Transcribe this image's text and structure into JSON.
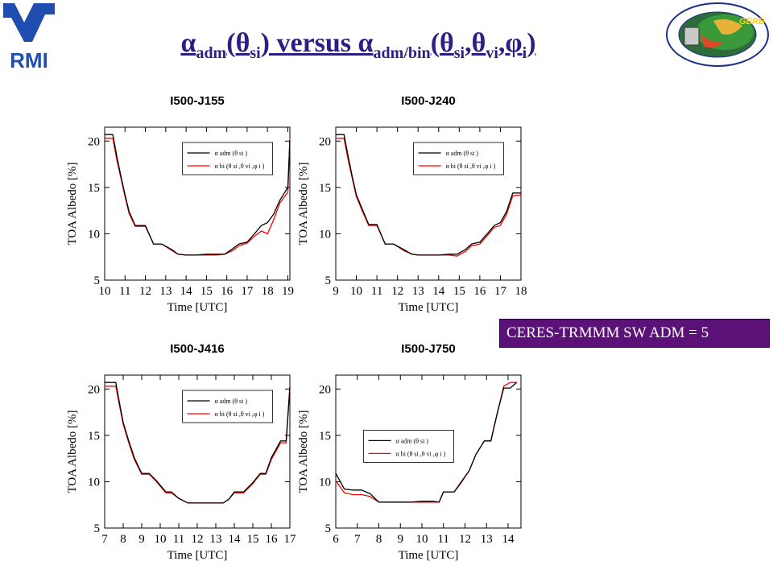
{
  "title": {
    "alpha": "α",
    "adm": "adm",
    "theta": "θ",
    "si": "si",
    "versus": ") versus ",
    "adm_bin": "adm/bin",
    "vi": "vi",
    "phi": "φ",
    "i": "i",
    "comma": ",",
    "open": "(",
    "close": ")"
  },
  "logos": {
    "left_text": "RMI",
    "right_text": "GERB"
  },
  "note": "CERES-TRMMM SW ADM = 5",
  "colors": {
    "adm": "#000000",
    "bin": "#ff0000",
    "title": "#2b1e86",
    "note_bg": "#5b1178"
  },
  "legend": {
    "adm": "α adm (θ si )",
    "bin": "α bi (θ si ,θ vi ,φ i )"
  },
  "chart_data": [
    {
      "type": "line",
      "title": "I500-J155",
      "xlabel": "Time [UTC]",
      "ylabel": "TOA Albedo [%]",
      "xlim": [
        10,
        19.1
      ],
      "ylim": [
        5,
        21.5
      ],
      "xticks": [
        10,
        11,
        12,
        13,
        14,
        15,
        16,
        17,
        18,
        19
      ],
      "yticks": [
        5,
        10,
        15,
        20
      ],
      "legend_position": "top-right",
      "series": [
        {
          "key": "adm",
          "x": [
            10,
            10.4,
            10.6,
            10.8,
            11,
            11.2,
            11.5,
            12,
            12.4,
            12.8,
            13.3,
            13.6,
            14,
            14.5,
            15,
            15.5,
            15.9,
            16.3,
            16.6,
            17,
            17.4,
            17.7,
            18,
            18.3,
            18.6,
            19,
            19.1
          ],
          "y": [
            20.7,
            20.7,
            18.3,
            16.2,
            14.2,
            12.4,
            10.9,
            10.9,
            8.9,
            8.9,
            8.3,
            7.8,
            7.7,
            7.7,
            7.8,
            7.8,
            7.8,
            8.4,
            8.9,
            9.1,
            10.1,
            10.9,
            11.2,
            12.1,
            13.6,
            15,
            20.1
          ]
        },
        {
          "key": "bin",
          "x": [
            10,
            10.4,
            10.6,
            10.8,
            11,
            11.2,
            11.5,
            12,
            12.4,
            12.8,
            13.3,
            13.6,
            14,
            14.5,
            15,
            15.5,
            15.9,
            16.3,
            16.6,
            17,
            17.4,
            17.7,
            18,
            18.3,
            18.6,
            19,
            19.1
          ],
          "y": [
            20.3,
            20.3,
            17.9,
            16,
            14,
            12.2,
            10.8,
            10.8,
            8.9,
            8.9,
            8.2,
            7.8,
            7.7,
            7.7,
            7.7,
            7.7,
            7.8,
            8.2,
            8.7,
            9,
            9.8,
            10.3,
            10,
            11.5,
            13.3,
            14.5,
            20.3
          ]
        }
      ]
    },
    {
      "type": "line",
      "title": "I500-J240",
      "xlabel": "Time [UTC]",
      "ylabel": "TOA Albedo [%]",
      "xlim": [
        9,
        18
      ],
      "ylim": [
        5,
        21.5
      ],
      "xticks": [
        9,
        10,
        11,
        12,
        13,
        14,
        15,
        16,
        17,
        18
      ],
      "yticks": [
        5,
        10,
        15,
        20
      ],
      "legend_position": "top-right",
      "series": [
        {
          "key": "adm",
          "x": [
            9,
            9.4,
            9.6,
            9.8,
            10,
            10.3,
            10.6,
            11,
            11.4,
            11.8,
            12.3,
            12.7,
            13,
            13.5,
            14,
            14.5,
            14.9,
            15.3,
            15.6,
            16,
            16.4,
            16.7,
            17,
            17.3,
            17.6,
            18
          ],
          "y": [
            20.7,
            20.7,
            18.4,
            16.2,
            14.2,
            12.6,
            11,
            11,
            8.9,
            8.9,
            8.3,
            7.8,
            7.7,
            7.7,
            7.7,
            7.8,
            7.8,
            8.3,
            8.9,
            9.1,
            10.1,
            10.9,
            11.2,
            12.4,
            14.4,
            14.4
          ]
        },
        {
          "key": "bin",
          "x": [
            9,
            9.4,
            9.6,
            9.8,
            10,
            10.3,
            10.6,
            11,
            11.4,
            11.8,
            12.3,
            12.7,
            13,
            13.5,
            14,
            14.5,
            14.9,
            15.3,
            15.6,
            16,
            16.4,
            16.7,
            17,
            17.3,
            17.6,
            18
          ],
          "y": [
            20.3,
            20.3,
            18,
            16,
            14,
            12.4,
            10.9,
            10.9,
            8.9,
            8.9,
            8.2,
            7.8,
            7.7,
            7.7,
            7.7,
            7.7,
            7.6,
            8.1,
            8.7,
            8.9,
            9.9,
            10.7,
            10.9,
            12.1,
            14.1,
            14.2
          ]
        }
      ]
    },
    {
      "type": "line",
      "title": "I500-J416",
      "xlabel": "Time [UTC]",
      "ylabel": "TOA Albedo [%]",
      "xlim": [
        7,
        17
      ],
      "ylim": [
        5,
        21.5
      ],
      "xticks": [
        7,
        8,
        9,
        10,
        11,
        12,
        13,
        14,
        15,
        16,
        17
      ],
      "yticks": [
        5,
        10,
        15,
        20
      ],
      "legend_position": "top-right",
      "series": [
        {
          "key": "adm",
          "x": [
            7,
            7.6,
            7.8,
            8,
            8.3,
            8.6,
            9,
            9.4,
            9.8,
            10.3,
            10.6,
            11,
            11.5,
            12,
            12.5,
            13,
            13.4,
            13.7,
            14,
            14.5,
            15,
            15.4,
            15.7,
            16,
            16.5,
            16.8,
            17
          ],
          "y": [
            20.7,
            20.7,
            18.5,
            16.4,
            14.4,
            12.6,
            10.9,
            10.9,
            10.1,
            8.9,
            8.9,
            8.2,
            7.7,
            7.7,
            7.7,
            7.7,
            7.7,
            8.1,
            8.9,
            8.9,
            9.9,
            10.9,
            10.9,
            12.6,
            14.4,
            14.4,
            20.2
          ]
        },
        {
          "key": "bin",
          "x": [
            7,
            7.6,
            7.8,
            8,
            8.3,
            8.6,
            9,
            9.4,
            9.8,
            10.3,
            10.6,
            11,
            11.5,
            12,
            12.5,
            13,
            13.4,
            13.7,
            14,
            14.5,
            15,
            15.4,
            15.7,
            16,
            16.5,
            16.8,
            17
          ],
          "y": [
            20.3,
            20.3,
            18.2,
            16.2,
            14.2,
            12.4,
            10.8,
            10.8,
            10,
            8.8,
            8.8,
            8.2,
            7.7,
            7.7,
            7.7,
            7.7,
            7.7,
            8.1,
            8.8,
            8.8,
            9.8,
            10.8,
            10.8,
            12.4,
            14.2,
            14.2,
            20.3
          ]
        }
      ]
    },
    {
      "type": "line",
      "title": "I500-J750",
      "xlabel": "Time [UTC]",
      "ylabel": "TOA Albedo [%]",
      "xlim": [
        6,
        14.6
      ],
      "ylim": [
        5,
        21.5
      ],
      "xticks": [
        6,
        7,
        8,
        9,
        10,
        11,
        12,
        13,
        14
      ],
      "yticks": [
        5,
        10,
        15,
        20
      ],
      "legend_position": "center-left",
      "series": [
        {
          "key": "adm",
          "x": [
            6,
            6.4,
            6.8,
            7.2,
            7.6,
            8,
            8.5,
            9,
            9.5,
            10,
            10.5,
            10.8,
            11,
            11.5,
            11.8,
            12.2,
            12.5,
            12.9,
            13.2,
            13.5,
            13.8,
            14.1,
            14.4
          ],
          "y": [
            10.9,
            9.2,
            9.1,
            9.1,
            8.7,
            7.8,
            7.8,
            7.8,
            7.8,
            7.9,
            7.9,
            7.8,
            8.9,
            8.9,
            9.9,
            11.2,
            12.9,
            14.4,
            14.4,
            17.4,
            20.1,
            20.1,
            20.7
          ]
        },
        {
          "key": "bin",
          "x": [
            6,
            6.4,
            6.8,
            7.2,
            7.6,
            8,
            8.5,
            9,
            9.5,
            10,
            10.5,
            10.8,
            11,
            11.5,
            11.8,
            12.2,
            12.5,
            12.9,
            13.2,
            13.5,
            13.8,
            14.1,
            14.4
          ],
          "y": [
            10.1,
            8.8,
            8.6,
            8.6,
            8.4,
            7.8,
            7.8,
            7.8,
            7.8,
            7.8,
            7.8,
            7.8,
            8.9,
            8.9,
            9.8,
            11.2,
            12.9,
            14.4,
            14.4,
            17.4,
            20.3,
            20.7,
            20.7
          ]
        }
      ]
    }
  ]
}
